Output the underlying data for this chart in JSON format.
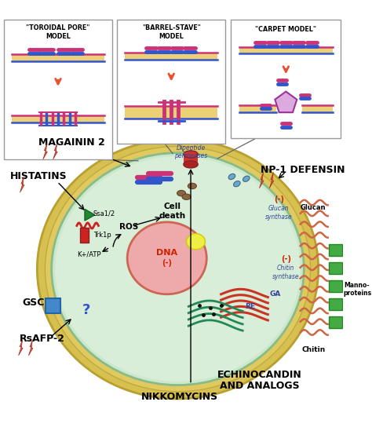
{
  "background_color": "#ffffff",
  "cell_color": "#d4ead4",
  "membrane_pink": "#cc3377",
  "membrane_blue": "#3355cc",
  "membrane_yellow": "#e8c860",
  "lightning_color": "#e85030",
  "golgi_color": "#228855",
  "nucleus_color": "#e8a090",
  "nucleus_outline": "#cc6050",
  "label_magainin": "MAGAININ 2",
  "label_histatins": "HISTATINS",
  "label_np1": "NP-1 DEFENSIN",
  "label_nikko": "NIKKOMYCINS",
  "label_echino": "ECHINOCANDIN",
  "label_echino2": "AND ANALOGS",
  "label_rsafp": "RsAFP-2",
  "label_gsc": "GSC",
  "label_ssa": "Ssa1/2",
  "label_trk": "Trk1p",
  "label_katp": "K+/ATP",
  "label_ros": "ROS",
  "label_celldeath1": "Cell",
  "label_celldeath2": "death",
  "label_dna": "(-)",
  "label_dna2": "DNA",
  "label_ga": "GA",
  "label_re": "RE",
  "label_chitin_syn1": "Chitin",
  "label_chitin_syn2": "synthase",
  "label_chitin_syn3": "(-)",
  "label_glucan_syn1": "Glucan",
  "label_glucan_syn2": "synthase",
  "label_glucan_syn3": "(-)",
  "label_dipeptide1": "Dipeptide",
  "label_dipeptide2": "permeases",
  "label_chitin": "Chitin",
  "label_manno1": "Manno-",
  "label_manno2": "proteins",
  "label_glucan": "Glucan",
  "label_question": "?",
  "box1_title1": "TOROIDAL PORE",
  "box1_title2": "MODEL",
  "box2_title1": "BARREL-STAVE",
  "box2_title2": "MODEL",
  "box3_title": "CARPET MODEL"
}
